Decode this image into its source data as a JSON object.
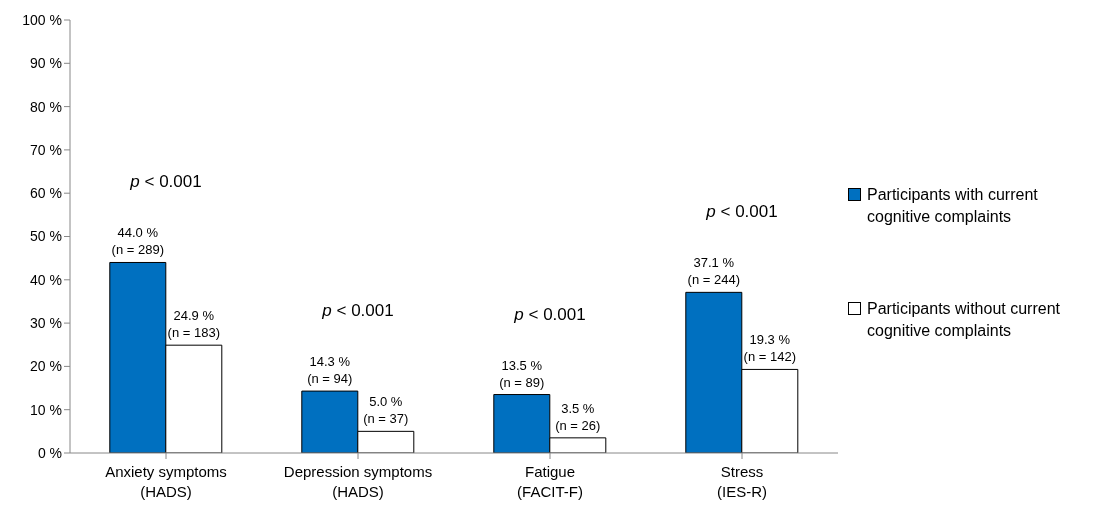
{
  "chart_data": {
    "type": "bar",
    "categories": [
      "Anxiety symptoms\n(HADS)",
      "Depression symptoms\n(HADS)",
      "Fatigue\n(FACIT-F)",
      "Stress\n(IES-R)"
    ],
    "series": [
      {
        "name": "Participants with current cognitive complaints",
        "color": "#0070c0",
        "values": [
          44.0,
          14.3,
          13.5,
          37.1
        ],
        "value_labels": [
          "44.0 %\n(n = 289)",
          "14.3 %\n(n = 94)",
          "13.5 %\n(n = 89)",
          "37.1 %\n(n = 244)"
        ]
      },
      {
        "name": "Participants without current cognitive complaints",
        "color": "#ffffff",
        "values": [
          24.9,
          5.0,
          3.5,
          19.3
        ],
        "value_labels": [
          "24.9 %\n(n = 183)",
          "5.0 %\n(n = 37)",
          "3.5 %\n(n = 26)",
          "19.3 %\n(n = 142)"
        ]
      }
    ],
    "ylim": [
      0,
      100
    ],
    "yticks": [
      {
        "value": 0,
        "label": "0 %"
      },
      {
        "value": 10,
        "label": "10 %"
      },
      {
        "value": 20,
        "label": "20 %"
      },
      {
        "value": 30,
        "label": "30 %"
      },
      {
        "value": 40,
        "label": "40 %"
      },
      {
        "value": 50,
        "label": "50 %"
      },
      {
        "value": 60,
        "label": "60 %"
      },
      {
        "value": 70,
        "label": "70 %"
      },
      {
        "value": 80,
        "label": "80 %"
      },
      {
        "value": 90,
        "label": "90 %"
      },
      {
        "value": 100,
        "label": "100 %"
      }
    ],
    "annotations": [
      "p < 0.001",
      "p < 0.001",
      "p < 0.001",
      "p < 0.001"
    ],
    "grid": false,
    "legend": "right"
  }
}
